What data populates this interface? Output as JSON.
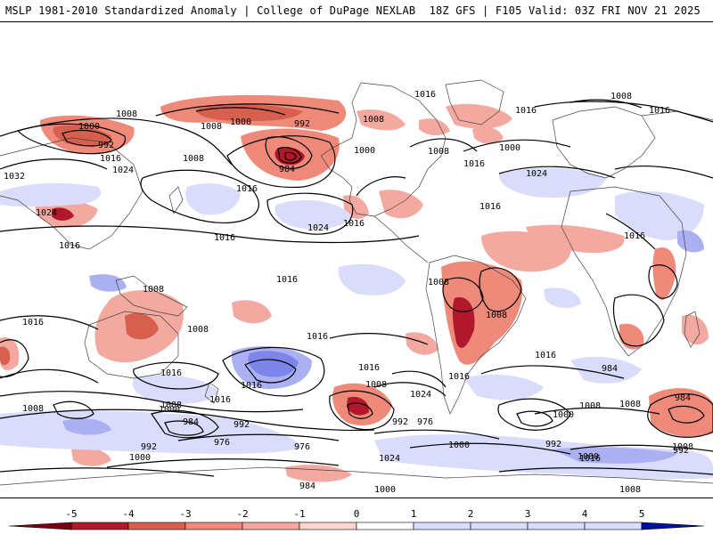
{
  "header": {
    "title_left": "MSLP 1981-2010 Standardized Anomaly | College of DuPage NEXLAB",
    "title_right": "18Z GFS | F105 Valid: 03Z FRI NOV 21 2025"
  },
  "colors": {
    "neg5": "#b2182b",
    "neg4": "#d6604d",
    "neg3": "#ef8a7a",
    "neg2": "#f4a9a0",
    "neg1": "#fbd5cf",
    "pos1": "#d9dcfa",
    "pos2": "#aab0f2",
    "pos3": "#7d85ea",
    "pos4": "#4f5ae0",
    "pos5": "#1f2bd6",
    "land": "#333333",
    "isobar": "#000000"
  },
  "isobar_labels": [
    {
      "text": "1008"
    },
    {
      "text": "1000"
    },
    {
      "text": "992"
    },
    {
      "text": "1016"
    },
    {
      "text": "1024"
    },
    {
      "text": "1032"
    },
    {
      "text": "1024"
    },
    {
      "text": "1016"
    },
    {
      "text": "1008"
    },
    {
      "text": "1008"
    },
    {
      "text": "1016"
    },
    {
      "text": "1000"
    },
    {
      "text": "992"
    },
    {
      "text": "984"
    },
    {
      "text": "1008"
    },
    {
      "text": "1000"
    },
    {
      "text": "1016"
    },
    {
      "text": "1016"
    },
    {
      "text": "1008"
    },
    {
      "text": "1016"
    },
    {
      "text": "1000"
    },
    {
      "text": "1008"
    },
    {
      "text": "1016"
    },
    {
      "text": "1024"
    },
    {
      "text": "1016"
    },
    {
      "text": "1016"
    },
    {
      "text": "1016"
    },
    {
      "text": "1024"
    },
    {
      "text": "1016"
    },
    {
      "text": "1008"
    },
    {
      "text": "1008"
    },
    {
      "text": "1008"
    },
    {
      "text": "1008"
    },
    {
      "text": "1016"
    },
    {
      "text": "1016"
    },
    {
      "text": "1016"
    },
    {
      "text": "1016"
    },
    {
      "text": "1016"
    },
    {
      "text": "1024"
    },
    {
      "text": "1016"
    },
    {
      "text": "1008"
    },
    {
      "text": "1008"
    },
    {
      "text": "1000"
    },
    {
      "text": "984"
    },
    {
      "text": "992"
    },
    {
      "text": "976"
    },
    {
      "text": "992"
    },
    {
      "text": "1000"
    },
    {
      "text": "1016"
    },
    {
      "text": "1008"
    },
    {
      "text": "984"
    },
    {
      "text": "992"
    },
    {
      "text": "976"
    },
    {
      "text": "976"
    },
    {
      "text": "1024"
    },
    {
      "text": "1000"
    },
    {
      "text": "1016"
    },
    {
      "text": "992"
    },
    {
      "text": "1000"
    },
    {
      "text": "1008"
    },
    {
      "text": "1000"
    },
    {
      "text": "992"
    },
    {
      "text": "984"
    },
    {
      "text": "1008"
    },
    {
      "text": "1016"
    },
    {
      "text": "1008"
    },
    {
      "text": "984"
    },
    {
      "text": "1000"
    },
    {
      "text": "1008"
    },
    {
      "text": "1016"
    }
  ],
  "colorbar": {
    "ticks": [
      "-5",
      "-4",
      "-3",
      "-2",
      "-1",
      "0",
      "1",
      "2",
      "3",
      "4",
      "5"
    ],
    "min": -5,
    "max": 5
  }
}
